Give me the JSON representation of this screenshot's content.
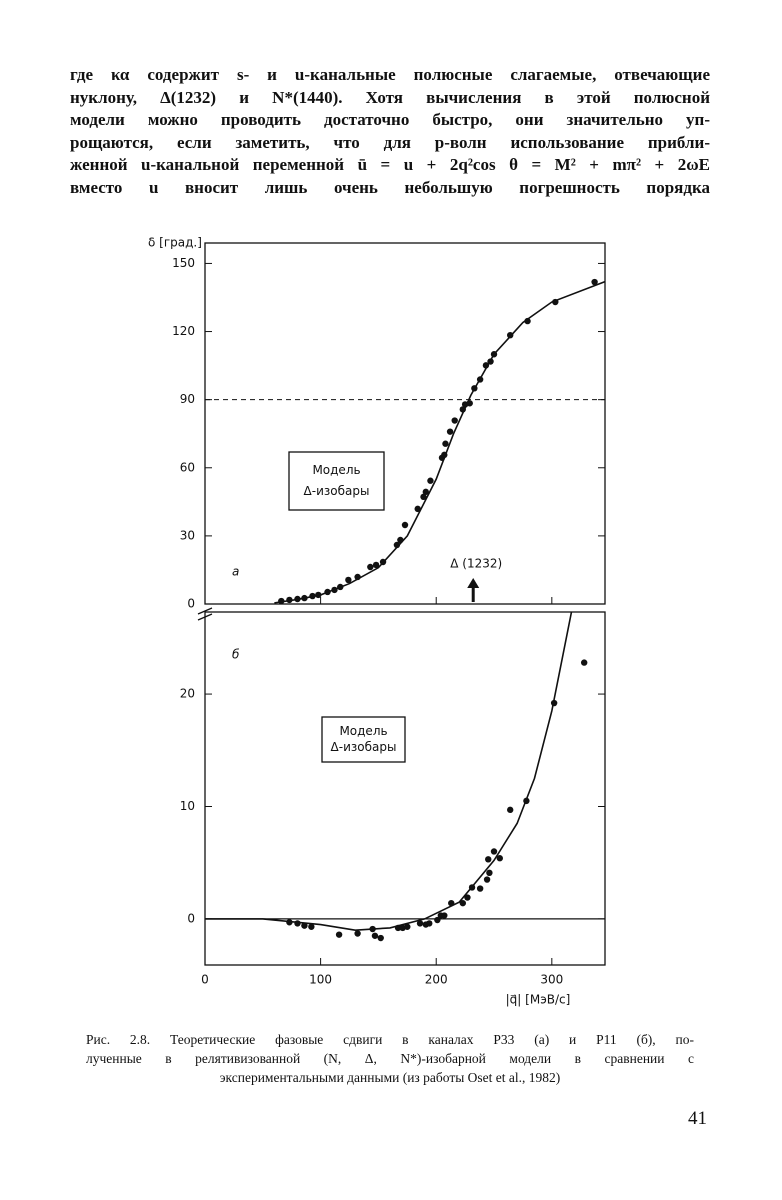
{
  "text": {
    "lines": [
      "где κα содержит s- и u-канальные полюсные слагаемые, отвечающие",
      "нуклону, Δ(1232) и N*(1440). Хотя вычисления в этой полюсной",
      "модели можно проводить достаточно быстро, они значительно уп-",
      "рощаются, если заметить, что для p-волн использование прибли-",
      "женной u-канальной переменной ū = u + 2q²cos θ = M² + mπ² + 2ωE",
      "вместо u вносит лишь очень небольшую погрешность порядка"
    ]
  },
  "chart_data": [
    {
      "type": "scatter",
      "ylabel": "δ [град.]",
      "panel_label": "а",
      "annotation": [
        "Модель",
        "Δ-изобары"
      ],
      "arrow_label": "Δ (1232)",
      "arrow_x": 232,
      "reference_line": 90,
      "x": [
        66,
        73,
        80,
        86,
        93,
        98,
        106,
        112,
        117,
        124,
        132,
        143,
        148,
        154,
        166,
        169,
        173,
        184,
        189,
        191,
        195,
        205,
        207,
        208,
        212,
        216,
        223,
        225,
        229,
        233,
        238,
        243,
        247,
        250,
        264,
        279,
        303,
        337
      ],
      "values": [
        1.3,
        1.8,
        2.2,
        2.6,
        3.5,
        4.0,
        5.3,
        6.2,
        7.5,
        10.6,
        11.9,
        16.3,
        17.2,
        18.5,
        26.0,
        28.2,
        34.8,
        41.9,
        47.2,
        49.4,
        54.3,
        64.4,
        65.7,
        70.6,
        75.9,
        80.8,
        85.7,
        87.9,
        88.4,
        95.0,
        98.9,
        105.1,
        106.8,
        110.0,
        118.4,
        124.6,
        133.0,
        141.8
      ],
      "curve": {
        "x": [
          60,
          80,
          100,
          125,
          150,
          175,
          200,
          215,
          230,
          250,
          275,
          300,
          346
        ],
        "values": [
          0.5,
          2,
          4,
          9,
          16,
          30,
          55,
          75,
          92,
          110,
          124,
          133,
          142
        ]
      },
      "xlim": [
        0,
        346
      ],
      "ylim": [
        0,
        159
      ],
      "yticks": [
        0,
        30,
        60,
        90,
        120,
        150
      ]
    },
    {
      "type": "scatter",
      "xlabel": "|q⃗| [МэВ/с]",
      "panel_label": "б",
      "annotation": [
        "Модель",
        "Δ-изобары"
      ],
      "x": [
        73,
        80,
        86,
        92,
        116,
        132,
        145,
        147,
        152,
        167,
        171,
        175,
        186,
        191,
        194,
        201,
        204,
        207,
        213,
        223,
        227,
        231,
        238,
        244,
        246,
        245,
        250,
        255,
        264,
        278,
        302,
        328
      ],
      "values": [
        -0.3,
        -0.4,
        -0.6,
        -0.7,
        -1.4,
        -1.3,
        -0.9,
        -1.5,
        -1.7,
        -0.8,
        -0.8,
        -0.7,
        -0.4,
        -0.5,
        -0.4,
        -0.1,
        0.3,
        0.3,
        1.4,
        1.4,
        1.9,
        2.8,
        2.7,
        3.5,
        4.1,
        5.3,
        6.0,
        5.4,
        9.7,
        10.5,
        19.2,
        22.8
      ],
      "curve": {
        "x": [
          0,
          50,
          100,
          130,
          160,
          190,
          220,
          250,
          270,
          285,
          300,
          317
        ],
        "values": [
          0,
          0,
          -0.5,
          -1.0,
          -0.8,
          0,
          1.5,
          5.2,
          8.5,
          12.5,
          18.5,
          27.3
        ]
      },
      "xlim": [
        0,
        346
      ],
      "ylim": [
        -4.1,
        27.3
      ],
      "yticks": [
        0,
        10,
        20
      ],
      "xticks": [
        0,
        100,
        200,
        300
      ]
    }
  ],
  "caption": {
    "lines": [
      "Рис. 2.8. Теоретические фазовые сдвиги в каналах P33 (а) и P11 (б), по-",
      "лученные в релятивизованной (N, Δ, N*)-изобарной модели в сравнении с",
      "экспериментальными данными (из работы Oset et al., 1982)"
    ]
  },
  "page_number": "41"
}
